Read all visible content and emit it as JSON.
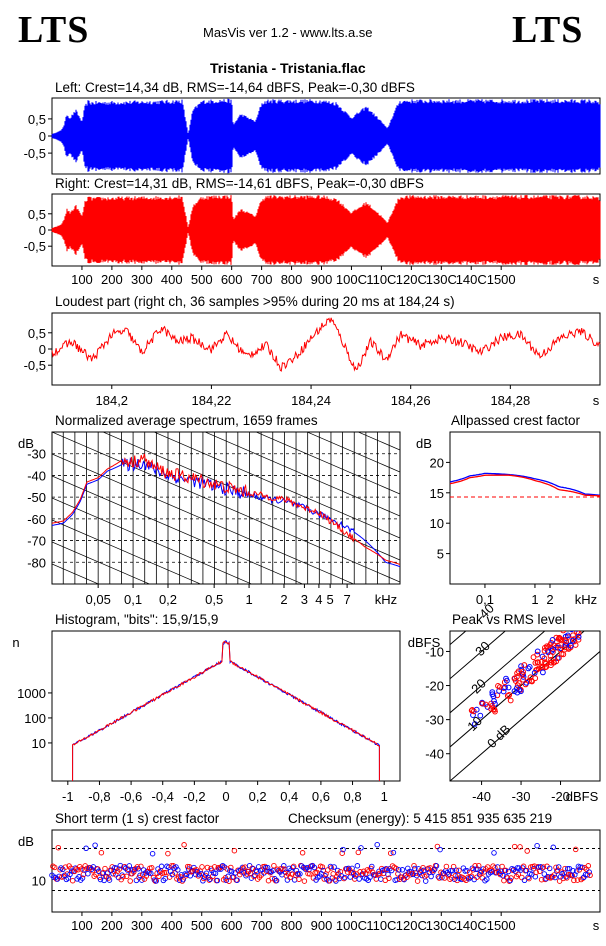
{
  "header": {
    "logo_left": "LTS",
    "logo_right": "LTS",
    "app": "MasVis ver 1.2 - www.lts.a.se",
    "file_title": "Tristania - Tristania.flac"
  },
  "colors": {
    "left": "#0000ff",
    "right": "#ff0000",
    "grid": "#000000",
    "ref": "#ff0000"
  },
  "chart_data": [
    {
      "id": "left_waveform",
      "type": "area",
      "title": "Left: Crest=14,34 dB, RMS=-14,64 dBFS, Peak=-0,30 dBFS",
      "yticks": [
        "0,5",
        "0",
        "-0,5"
      ],
      "x_range_s": [
        0,
        1830
      ],
      "ylim": [
        -1,
        1
      ],
      "envelope": [
        [
          0,
          0.05
        ],
        [
          15,
          0.1
        ],
        [
          30,
          0.15
        ],
        [
          40,
          0.3
        ],
        [
          50,
          0.6
        ],
        [
          60,
          0.5
        ],
        [
          80,
          0.7
        ],
        [
          100,
          0.4
        ],
        [
          110,
          0.8
        ],
        [
          120,
          0.95
        ],
        [
          130,
          0.92
        ],
        [
          380,
          0.95
        ],
        [
          435,
          0.97
        ],
        [
          455,
          0.05
        ],
        [
          470,
          0.7
        ],
        [
          500,
          0.95
        ],
        [
          560,
          0.98
        ],
        [
          600,
          0.98
        ],
        [
          605,
          0.3
        ],
        [
          630,
          0.6
        ],
        [
          680,
          0.4
        ],
        [
          700,
          0.9
        ],
        [
          720,
          0.97
        ],
        [
          900,
          0.97
        ],
        [
          950,
          0.9
        ],
        [
          1000,
          0.5
        ],
        [
          1050,
          0.8
        ],
        [
          1100,
          0.4
        ],
        [
          1120,
          0.2
        ],
        [
          1140,
          0.6
        ],
        [
          1160,
          0.95
        ],
        [
          1180,
          0.97
        ],
        [
          1800,
          0.97
        ],
        [
          1830,
          0.9
        ]
      ]
    },
    {
      "id": "right_waveform",
      "type": "area",
      "title": "Right: Crest=14,31 dB, RMS=-14,61 dBFS, Peak=-0,30 dBFS",
      "yticks": [
        "0,5",
        "0",
        "-0,5"
      ],
      "x_range_s": [
        0,
        1830
      ],
      "ylim": [
        -1,
        1
      ],
      "xticks": [
        "100",
        "200",
        "300",
        "400",
        "500",
        "600",
        "700",
        "800",
        "900",
        "1000",
        "1100",
        "1200",
        "1300",
        "1400",
        "1500"
      ],
      "xtick_labels": [
        "100",
        "200",
        "300",
        "400",
        "500",
        "600",
        "700",
        "800",
        "900",
        "100C",
        "110C",
        "120C",
        "130C",
        "140C",
        "1500"
      ],
      "x_unit": "s",
      "envelope": [
        [
          0,
          0.05
        ],
        [
          15,
          0.1
        ],
        [
          30,
          0.15
        ],
        [
          40,
          0.3
        ],
        [
          50,
          0.6
        ],
        [
          60,
          0.5
        ],
        [
          80,
          0.7
        ],
        [
          100,
          0.4
        ],
        [
          110,
          0.8
        ],
        [
          120,
          0.95
        ],
        [
          130,
          0.92
        ],
        [
          380,
          0.95
        ],
        [
          435,
          0.97
        ],
        [
          455,
          0.05
        ],
        [
          470,
          0.7
        ],
        [
          500,
          0.95
        ],
        [
          560,
          0.98
        ],
        [
          600,
          0.98
        ],
        [
          605,
          0.3
        ],
        [
          630,
          0.6
        ],
        [
          680,
          0.4
        ],
        [
          700,
          0.9
        ],
        [
          720,
          0.97
        ],
        [
          900,
          0.97
        ],
        [
          950,
          0.9
        ],
        [
          1000,
          0.5
        ],
        [
          1050,
          0.8
        ],
        [
          1100,
          0.4
        ],
        [
          1120,
          0.2
        ],
        [
          1140,
          0.6
        ],
        [
          1160,
          0.95
        ],
        [
          1180,
          0.97
        ],
        [
          1800,
          0.97
        ],
        [
          1830,
          0.9
        ]
      ]
    },
    {
      "id": "loudest_part",
      "type": "line",
      "title": "Loudest part (right ch, 36 samples >95% during 20 ms at 184,24 s)",
      "yticks": [
        "0,5",
        "0",
        "-0,5"
      ],
      "xticks": [
        184.2,
        184.22,
        184.24,
        184.26,
        184.28
      ],
      "xtick_labels": [
        "184,2",
        "184,22",
        "184,24",
        "184,26",
        "184,28"
      ],
      "x_unit": "s",
      "xlim": [
        184.188,
        184.298
      ],
      "ylim": [
        -1,
        1
      ],
      "points": [
        [
          184.188,
          -0.1
        ],
        [
          184.192,
          0.2
        ],
        [
          184.196,
          -0.3
        ],
        [
          184.2,
          0.4
        ],
        [
          184.203,
          0.5
        ],
        [
          184.206,
          -0.1
        ],
        [
          184.21,
          0.6
        ],
        [
          184.213,
          0.2
        ],
        [
          184.216,
          0.3
        ],
        [
          184.22,
          0.0
        ],
        [
          184.223,
          0.4
        ],
        [
          184.227,
          -0.2
        ],
        [
          184.231,
          0.1
        ],
        [
          184.234,
          -0.5
        ],
        [
          184.237,
          -0.2
        ],
        [
          184.24,
          0.3
        ],
        [
          184.242,
          0.6
        ],
        [
          184.244,
          0.85
        ],
        [
          184.246,
          0.3
        ],
        [
          184.249,
          -0.6
        ],
        [
          184.252,
          0.2
        ],
        [
          184.255,
          -0.3
        ],
        [
          184.258,
          0.4
        ],
        [
          184.262,
          0.1
        ],
        [
          184.266,
          0.3
        ],
        [
          184.27,
          0.2
        ],
        [
          184.274,
          -0.1
        ],
        [
          184.278,
          0.3
        ],
        [
          184.282,
          0.4
        ],
        [
          184.286,
          -0.2
        ],
        [
          184.29,
          0.3
        ],
        [
          184.294,
          0.5
        ],
        [
          184.298,
          0.1
        ]
      ]
    },
    {
      "id": "avg_spectrum",
      "type": "line",
      "title": "Normalized average spectrum, 1659 frames",
      "ylabel": "dB",
      "yticks": [
        -30,
        -40,
        -50,
        -60,
        -70,
        -80
      ],
      "xtick_labels": [
        "0,05",
        "0,1",
        "0,2",
        "0,5",
        "1",
        "2",
        "3",
        "4",
        "5",
        "7",
        "kHz"
      ],
      "xticks_khz": [
        0.05,
        0.1,
        0.2,
        0.5,
        1,
        2,
        3,
        4,
        5,
        7
      ],
      "xlim_khz": [
        0.02,
        20
      ],
      "ylim": [
        -90,
        -20
      ],
      "series": [
        {
          "name": "left",
          "points": [
            [
              0.02,
              -63
            ],
            [
              0.025,
              -62
            ],
            [
              0.03,
              -58
            ],
            [
              0.035,
              -52
            ],
            [
              0.04,
              -44
            ],
            [
              0.05,
              -42
            ],
            [
              0.06,
              -38
            ],
            [
              0.08,
              -35
            ],
            [
              0.1,
              -35
            ],
            [
              0.12,
              -34
            ],
            [
              0.15,
              -37
            ],
            [
              0.2,
              -40
            ],
            [
              0.3,
              -42
            ],
            [
              0.5,
              -45
            ],
            [
              0.7,
              -47
            ],
            [
              1,
              -49
            ],
            [
              1.5,
              -51
            ],
            [
              2,
              -52
            ],
            [
              3,
              -55
            ],
            [
              4,
              -58
            ],
            [
              5,
              -60
            ],
            [
              7,
              -64
            ],
            [
              10,
              -70
            ],
            [
              15,
              -80
            ],
            [
              20,
              -82
            ]
          ]
        },
        {
          "name": "right",
          "points": [
            [
              0.02,
              -62
            ],
            [
              0.025,
              -61
            ],
            [
              0.03,
              -57
            ],
            [
              0.035,
              -51
            ],
            [
              0.04,
              -43
            ],
            [
              0.05,
              -41
            ],
            [
              0.06,
              -37
            ],
            [
              0.08,
              -33
            ],
            [
              0.1,
              -34
            ],
            [
              0.12,
              -32
            ],
            [
              0.15,
              -36
            ],
            [
              0.2,
              -39
            ],
            [
              0.3,
              -41
            ],
            [
              0.5,
              -44
            ],
            [
              0.7,
              -46
            ],
            [
              1,
              -48
            ],
            [
              1.5,
              -50
            ],
            [
              2,
              -51
            ],
            [
              3,
              -55
            ],
            [
              4,
              -57
            ],
            [
              5,
              -61
            ],
            [
              7,
              -67
            ],
            [
              10,
              -73
            ],
            [
              15,
              -79
            ],
            [
              20,
              -81
            ]
          ]
        }
      ]
    },
    {
      "id": "allpassed_crest",
      "type": "line",
      "title": "Allpassed crest factor",
      "ylabel": "dB",
      "yticks": [
        20,
        15,
        10,
        5
      ],
      "xticks_khz": [
        0.1,
        1,
        2
      ],
      "xtick_labels": [
        "0,1",
        "1",
        "2",
        "kHz"
      ],
      "xlim_khz": [
        0.02,
        20
      ],
      "ylim": [
        0,
        25
      ],
      "reference_db": 14.3,
      "series": [
        {
          "name": "left",
          "points": [
            [
              0.02,
              16.8
            ],
            [
              0.05,
              17.8
            ],
            [
              0.1,
              18.2
            ],
            [
              0.3,
              18.0
            ],
            [
              1,
              17.3
            ],
            [
              3,
              16.0
            ],
            [
              10,
              14.8
            ],
            [
              20,
              14.6
            ]
          ]
        },
        {
          "name": "right",
          "points": [
            [
              0.02,
              16.5
            ],
            [
              0.05,
              17.5
            ],
            [
              0.1,
              17.9
            ],
            [
              0.3,
              17.9
            ],
            [
              1,
              17.0
            ],
            [
              3,
              15.5
            ],
            [
              10,
              14.6
            ],
            [
              20,
              14.5
            ]
          ]
        }
      ]
    },
    {
      "id": "histogram",
      "type": "line",
      "title": "Histogram, \"bits\": 15,9/15,9",
      "ylabel": "n",
      "yscale": "log",
      "yticks": [
        1000,
        100,
        10
      ],
      "xtick_labels": [
        "-1",
        "-0,8",
        "-0,6",
        "-0,4",
        "-0,2",
        "0",
        "0,2",
        "0,4",
        "0,6",
        "0,8",
        "1"
      ],
      "xlim": [
        -1.1,
        1.1
      ],
      "ylim_log": [
        0.3,
        300000
      ]
    },
    {
      "id": "peak_vs_rms",
      "type": "scatter",
      "title": "Peak vs RMS level",
      "ylabel": "dBFS",
      "xlabel": "dBFS",
      "yticks": [
        -10,
        -20,
        -30,
        -40
      ],
      "xticks": [
        -40,
        -30,
        -20
      ],
      "diag_labels": [
        "40",
        "30",
        "20",
        "10",
        "0 dB"
      ],
      "xlim": [
        -48,
        -10
      ],
      "ylim": [
        -48,
        -4
      ]
    },
    {
      "id": "short_term_crest",
      "type": "scatter",
      "title": "Short term (1 s) crest factor",
      "checksum": "Checksum (energy): 5 415 851 935 635 219",
      "ylabel": "dB",
      "yticks": [
        10
      ],
      "xtick_labels": [
        "100",
        "200",
        "300",
        "400",
        "500",
        "600",
        "700",
        "800",
        "900",
        "100C",
        "110C",
        "120C",
        "130C",
        "140C",
        "1500"
      ],
      "x_unit": "s",
      "xlim_s": [
        0,
        1830
      ],
      "ylim_log": [
        5,
        30
      ]
    }
  ]
}
